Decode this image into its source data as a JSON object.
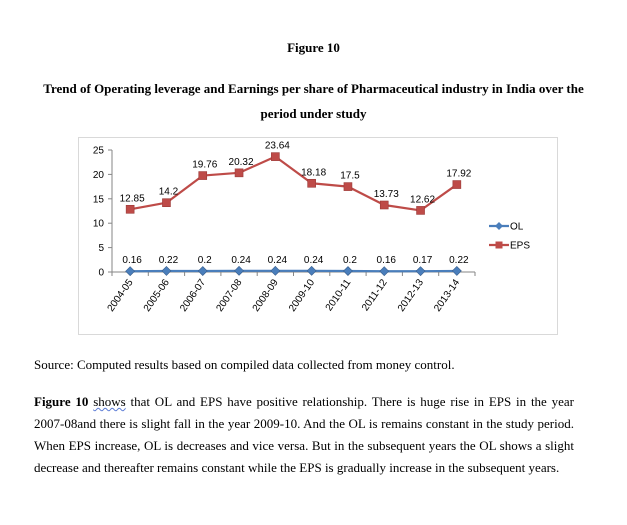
{
  "figure_label": "Figure 10",
  "figure_title": "Trend of Operating leverage and Earnings per share of Pharmaceutical industry in India over the period under study",
  "source_note": "Source: Computed results based on compiled data collected from money control.",
  "paragraph": {
    "lead": "Figure 10",
    "word1": "shows",
    "rest": " that OL and EPS have positive relationship. There is huge rise in EPS in the year 2007-08and there is slight fall in the year 2009-10. And the OL is remains constant in the study period. When EPS increase, OL is decreases and vice versa. But in the subsequent years the OL shows a slight decrease and thereafter remains constant while the EPS is gradually increase in the subsequent  years."
  },
  "chart_data": {
    "type": "line",
    "title": "",
    "xlabel": "",
    "ylabel": "",
    "ylim": [
      0,
      25
    ],
    "yticks": [
      0,
      5,
      10,
      15,
      20,
      25
    ],
    "grid": false,
    "legend_position": "right",
    "categories": [
      "2004-05",
      "2005-06",
      "2006-07",
      "2007-08",
      "2008-09",
      "2009-10",
      "2010-11",
      "2011-12",
      "2012-13",
      "2013-14"
    ],
    "series": [
      {
        "name": "OL",
        "color": "#4a7ebb",
        "marker": "diamond",
        "values": [
          0.16,
          0.22,
          0.2,
          0.24,
          0.24,
          0.24,
          0.2,
          0.16,
          0.17,
          0.22
        ],
        "labels": [
          "0.16",
          "0.22",
          "0.2",
          "0.24",
          "0.24",
          "0.24",
          "0.2",
          "0.16",
          "0.17",
          "0.22"
        ]
      },
      {
        "name": "EPS",
        "color": "#be4b48",
        "marker": "square",
        "values": [
          12.85,
          14.2,
          19.76,
          20.32,
          23.64,
          18.18,
          17.5,
          13.73,
          12.62,
          17.92
        ],
        "labels": [
          "12.85",
          "14.2",
          "19.76",
          "20.32",
          "23.64",
          "18.18",
          "17.5",
          "13.73",
          "12.62",
          "17.92"
        ]
      }
    ]
  }
}
